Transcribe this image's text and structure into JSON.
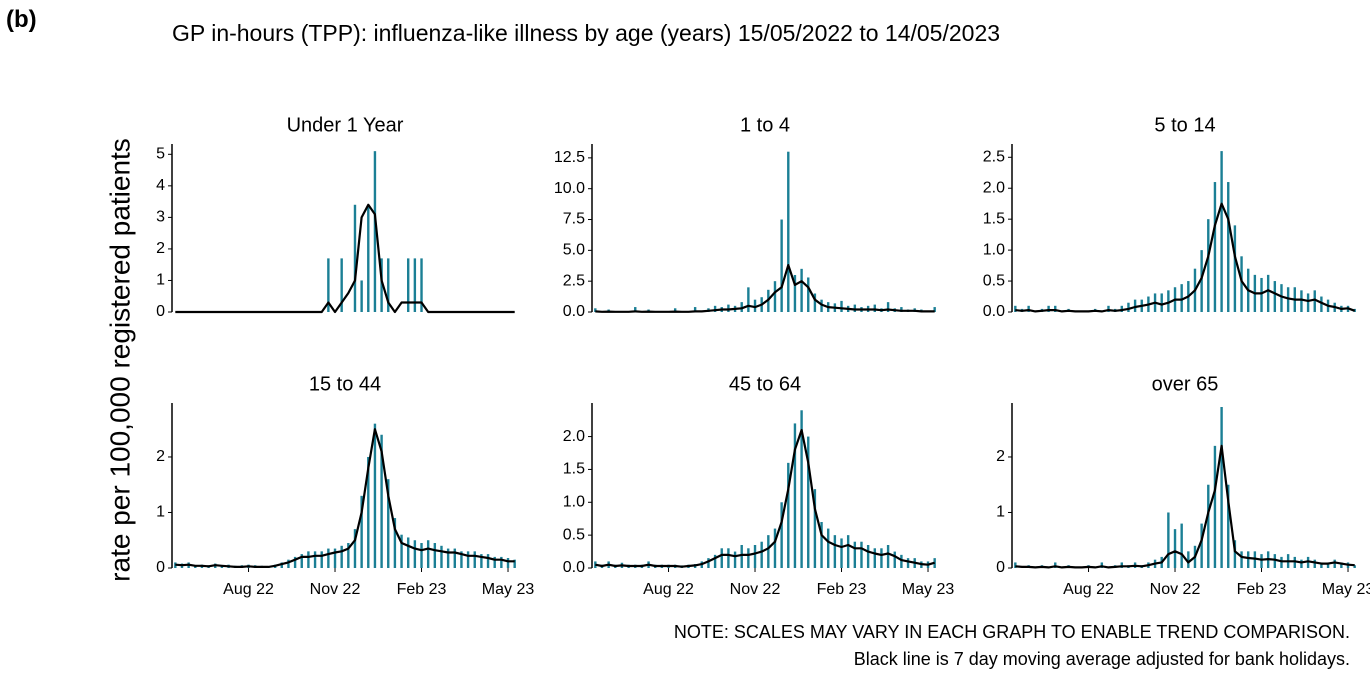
{
  "header": {
    "label": "(b)"
  },
  "chart_data": {
    "type": "bar",
    "title": "GP in-hours (TPP): influenza-like illness by age (years) 15/05/2022 to 14/05/2023",
    "y_label": "rate per 100,000 registered patients",
    "notes": [
      "NOTE: SCALES MAY VARY IN EACH GRAPH TO ENABLE TREND COMPARISON.",
      "Black line is 7 day moving average adjusted for bank holidays."
    ],
    "categories": [
      null,
      null,
      null,
      null,
      null,
      null,
      null,
      null,
      null,
      null,
      null,
      "Aug 22",
      null,
      null,
      null,
      null,
      null,
      null,
      null,
      null,
      null,
      null,
      null,
      null,
      "Nov 22",
      null,
      null,
      null,
      null,
      null,
      null,
      null,
      null,
      null,
      null,
      null,
      null,
      "Feb 23",
      null,
      null,
      null,
      null,
      null,
      null,
      null,
      null,
      null,
      null,
      null,
      null,
      "May 23",
      null
    ],
    "panels": [
      {
        "title": "Under 1 Year",
        "ylim": [
          0,
          5.2
        ],
        "yticks": [
          0,
          1,
          2,
          3,
          4,
          5
        ],
        "series": [
          {
            "type": "bar",
            "color": "#1b7f95",
            "values": [
              0,
              0,
              0,
              0,
              0,
              0,
              0,
              0,
              0,
              0,
              0,
              0,
              0,
              0,
              0,
              0,
              0,
              0,
              0,
              0,
              0,
              0,
              0,
              1.7,
              0,
              1.7,
              0,
              3.4,
              1.0,
              3.4,
              5.1,
              1.7,
              1.7,
              0,
              0,
              1.7,
              1.7,
              1.7,
              0,
              0,
              0,
              0,
              0,
              0,
              0,
              0,
              0,
              0,
              0,
              0,
              0,
              0
            ]
          },
          {
            "type": "line",
            "color": "#000000",
            "values": [
              0,
              0,
              0,
              0,
              0,
              0,
              0,
              0,
              0,
              0,
              0,
              0,
              0,
              0,
              0,
              0,
              0,
              0,
              0,
              0,
              0,
              0,
              0,
              0.3,
              0,
              0.3,
              0.6,
              1.0,
              3.0,
              3.4,
              3.1,
              1.0,
              0.3,
              0,
              0.3,
              0.3,
              0.3,
              0.3,
              0,
              0,
              0,
              0,
              0,
              0,
              0,
              0,
              0,
              0,
              0,
              0,
              0,
              0
            ]
          }
        ]
      },
      {
        "title": "1 to 4",
        "ylim": [
          0,
          13.3
        ],
        "yticks": [
          {
            "value": 0,
            "label": "0.0"
          },
          {
            "value": 2.5,
            "label": "2.5"
          },
          {
            "value": 5,
            "label": "5.0"
          },
          {
            "value": 7.5,
            "label": "7.5"
          },
          {
            "value": 10,
            "label": "10.0"
          },
          {
            "value": 12.5,
            "label": "12.5"
          }
        ],
        "series": [
          {
            "type": "bar",
            "color": "#1b7f95",
            "values": [
              0.3,
              0,
              0.2,
              0,
              0,
              0,
              0.4,
              0,
              0.2,
              0,
              0,
              0,
              0.3,
              0,
              0,
              0.4,
              0,
              0.3,
              0.5,
              0.4,
              0.6,
              0.5,
              0.8,
              2.0,
              1.0,
              1.2,
              1.8,
              2.5,
              7.5,
              13.0,
              3.0,
              3.5,
              2.8,
              1.5,
              1.0,
              0.8,
              0.7,
              0.9,
              0.5,
              0.6,
              0.4,
              0.5,
              0.6,
              0.3,
              0.8,
              0.3,
              0.4,
              0.2,
              0.3,
              0.2,
              0.1,
              0.4
            ]
          },
          {
            "type": "line",
            "color": "#000000",
            "values": [
              0.05,
              0.02,
              0.03,
              0.02,
              0.02,
              0.02,
              0.05,
              0.02,
              0.03,
              0.02,
              0.02,
              0.02,
              0.03,
              0.02,
              0.02,
              0.05,
              0.05,
              0.1,
              0.15,
              0.2,
              0.2,
              0.25,
              0.3,
              0.5,
              0.4,
              0.6,
              1.0,
              1.6,
              2.0,
              3.8,
              2.2,
              2.5,
              2.0,
              1.0,
              0.6,
              0.4,
              0.35,
              0.3,
              0.25,
              0.2,
              0.2,
              0.2,
              0.2,
              0.15,
              0.2,
              0.15,
              0.1,
              0.1,
              0.1,
              0.05,
              0.05,
              0.05
            ]
          }
        ]
      },
      {
        "title": "5 to 14",
        "ylim": [
          0,
          2.65
        ],
        "yticks": [
          {
            "value": 0,
            "label": "0.0"
          },
          {
            "value": 0.5,
            "label": "0.5"
          },
          {
            "value": 1,
            "label": "1.0"
          },
          {
            "value": 1.5,
            "label": "1.5"
          },
          {
            "value": 2,
            "label": "2.0"
          },
          {
            "value": 2.5,
            "label": "2.5"
          }
        ],
        "series": [
          {
            "type": "bar",
            "color": "#1b7f95",
            "values": [
              0.1,
              0.05,
              0.1,
              0,
              0.05,
              0.1,
              0.1,
              0,
              0.05,
              0,
              0,
              0,
              0.05,
              0,
              0.1,
              0.05,
              0.1,
              0.15,
              0.2,
              0.2,
              0.25,
              0.3,
              0.3,
              0.35,
              0.4,
              0.45,
              0.5,
              0.7,
              1.0,
              1.5,
              2.1,
              2.6,
              2.1,
              1.4,
              0.9,
              0.7,
              0.6,
              0.55,
              0.6,
              0.5,
              0.45,
              0.4,
              0.4,
              0.35,
              0.3,
              0.35,
              0.25,
              0.2,
              0.15,
              0.1,
              0.1,
              0.05
            ]
          },
          {
            "type": "line",
            "color": "#000000",
            "values": [
              0.03,
              0.02,
              0.03,
              0.01,
              0.02,
              0.03,
              0.03,
              0.01,
              0.02,
              0.01,
              0.01,
              0.01,
              0.02,
              0.01,
              0.03,
              0.02,
              0.03,
              0.05,
              0.08,
              0.1,
              0.12,
              0.15,
              0.12,
              0.15,
              0.2,
              0.2,
              0.25,
              0.35,
              0.55,
              0.9,
              1.4,
              1.75,
              1.5,
              0.9,
              0.5,
              0.35,
              0.3,
              0.3,
              0.35,
              0.3,
              0.25,
              0.22,
              0.2,
              0.2,
              0.18,
              0.2,
              0.15,
              0.1,
              0.08,
              0.05,
              0.06,
              0.02
            ]
          }
        ]
      },
      {
        "title": "15 to 44",
        "ylim": [
          0,
          2.9
        ],
        "yticks": [
          0,
          1,
          2
        ],
        "series": [
          {
            "type": "bar",
            "color": "#1b7f95",
            "values": [
              0.1,
              0.08,
              0.1,
              0.05,
              0.06,
              0.05,
              0.08,
              0.05,
              0.06,
              0.04,
              0.05,
              0.06,
              0.05,
              0.04,
              0.03,
              0.06,
              0.1,
              0.15,
              0.2,
              0.25,
              0.3,
              0.3,
              0.3,
              0.35,
              0.35,
              0.4,
              0.45,
              0.7,
              1.3,
              2.0,
              2.6,
              2.4,
              1.6,
              0.9,
              0.6,
              0.55,
              0.5,
              0.45,
              0.5,
              0.45,
              0.4,
              0.35,
              0.35,
              0.3,
              0.3,
              0.3,
              0.25,
              0.25,
              0.2,
              0.2,
              0.18,
              0.15
            ]
          },
          {
            "type": "line",
            "color": "#000000",
            "values": [
              0.06,
              0.05,
              0.06,
              0.04,
              0.04,
              0.03,
              0.05,
              0.04,
              0.03,
              0.02,
              0.02,
              0.03,
              0.02,
              0.02,
              0.02,
              0.04,
              0.07,
              0.1,
              0.15,
              0.2,
              0.2,
              0.22,
              0.22,
              0.25,
              0.28,
              0.3,
              0.35,
              0.5,
              1.0,
              1.8,
              2.5,
              2.1,
              1.3,
              0.7,
              0.45,
              0.4,
              0.35,
              0.32,
              0.35,
              0.32,
              0.3,
              0.28,
              0.28,
              0.25,
              0.22,
              0.22,
              0.2,
              0.18,
              0.15,
              0.15,
              0.12,
              0.12
            ]
          }
        ]
      },
      {
        "title": "45 to 64",
        "ylim": [
          0,
          2.45
        ],
        "yticks": [
          {
            "value": 0,
            "label": "0.0"
          },
          {
            "value": 0.5,
            "label": "0.5"
          },
          {
            "value": 1,
            "label": "1.0"
          },
          {
            "value": 1.5,
            "label": "1.5"
          },
          {
            "value": 2,
            "label": "2.0"
          }
        ],
        "series": [
          {
            "type": "bar",
            "color": "#1b7f95",
            "values": [
              0.1,
              0.05,
              0.1,
              0.05,
              0.08,
              0.05,
              0.05,
              0.05,
              0.1,
              0.05,
              0.05,
              0.05,
              0.05,
              0.04,
              0.05,
              0.06,
              0.1,
              0.15,
              0.2,
              0.3,
              0.3,
              0.25,
              0.35,
              0.3,
              0.35,
              0.4,
              0.5,
              0.6,
              1.0,
              1.6,
              2.2,
              2.4,
              2.0,
              1.2,
              0.7,
              0.6,
              0.5,
              0.45,
              0.5,
              0.4,
              0.4,
              0.35,
              0.3,
              0.3,
              0.35,
              0.25,
              0.2,
              0.15,
              0.15,
              0.1,
              0.1,
              0.15
            ]
          },
          {
            "type": "line",
            "color": "#000000",
            "values": [
              0.05,
              0.03,
              0.05,
              0.03,
              0.04,
              0.03,
              0.03,
              0.03,
              0.05,
              0.03,
              0.03,
              0.03,
              0.03,
              0.02,
              0.03,
              0.04,
              0.06,
              0.1,
              0.15,
              0.2,
              0.2,
              0.18,
              0.2,
              0.2,
              0.22,
              0.25,
              0.3,
              0.4,
              0.7,
              1.2,
              1.8,
              2.1,
              1.6,
              0.9,
              0.5,
              0.4,
              0.35,
              0.32,
              0.35,
              0.3,
              0.3,
              0.25,
              0.22,
              0.2,
              0.22,
              0.18,
              0.12,
              0.1,
              0.08,
              0.06,
              0.05,
              0.08
            ]
          }
        ]
      },
      {
        "title": "over 65",
        "ylim": [
          0,
          2.9
        ],
        "yticks": [
          0,
          1,
          2
        ],
        "series": [
          {
            "type": "bar",
            "color": "#1b7f95",
            "values": [
              0.1,
              0,
              0.05,
              0,
              0.05,
              0,
              0.1,
              0,
              0.05,
              0,
              0,
              0.05,
              0,
              0.1,
              0,
              0.05,
              0.1,
              0.05,
              0.1,
              0.05,
              0.1,
              0.15,
              0.2,
              1.0,
              0.7,
              0.8,
              0.3,
              0.4,
              0.8,
              1.5,
              2.2,
              2.9,
              1.5,
              0.5,
              0.3,
              0.3,
              0.3,
              0.25,
              0.3,
              0.25,
              0.2,
              0.25,
              0.2,
              0.15,
              0.2,
              0.15,
              0.1,
              0.1,
              0.15,
              0.1,
              0.1,
              0.05
            ]
          },
          {
            "type": "line",
            "color": "#000000",
            "values": [
              0.03,
              0.02,
              0.02,
              0.01,
              0.02,
              0.01,
              0.03,
              0.01,
              0.02,
              0.01,
              0.01,
              0.02,
              0.01,
              0.03,
              0.01,
              0.02,
              0.03,
              0.03,
              0.04,
              0.03,
              0.05,
              0.08,
              0.1,
              0.25,
              0.3,
              0.25,
              0.1,
              0.2,
              0.5,
              1.0,
              1.4,
              2.2,
              1.2,
              0.3,
              0.2,
              0.18,
              0.17,
              0.15,
              0.16,
              0.15,
              0.12,
              0.12,
              0.12,
              0.1,
              0.12,
              0.1,
              0.08,
              0.08,
              0.1,
              0.08,
              0.06,
              0.05
            ]
          }
        ]
      }
    ]
  }
}
